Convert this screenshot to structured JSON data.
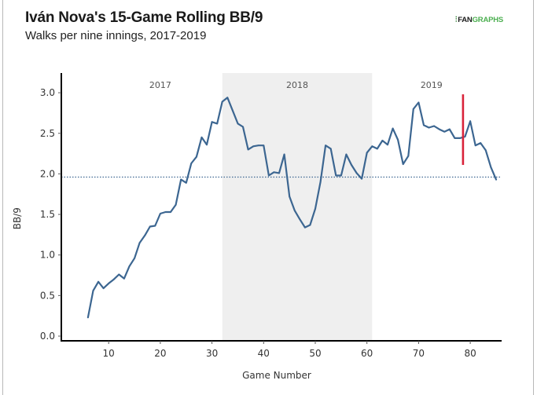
{
  "header": {
    "title": "Iván Nova's 15-Game Rolling BB/9",
    "subtitle": "Walks per nine innings, 2017-2019",
    "logo_text_dark": "FAN",
    "logo_text_green": "GRAPHS",
    "logo_icon": "fangraphs-logo-icon"
  },
  "colors": {
    "line": "#3c6691",
    "shade": "#efefef",
    "marker": "#d9233a",
    "reference": "#3c6691",
    "logo_green": "#4caf50"
  },
  "chart_data": {
    "type": "line",
    "title": "Iván Nova's 15-Game Rolling BB/9",
    "subtitle": "Walks per nine innings, 2017-2019",
    "xlabel": "Game Number",
    "ylabel": "BB/9",
    "xlim": [
      1,
      86
    ],
    "ylim": [
      0,
      3.2
    ],
    "xticks": [
      10,
      20,
      30,
      40,
      50,
      60,
      70,
      80
    ],
    "xtick_labels": [
      "10",
      "20",
      "30",
      "40",
      "50",
      "60",
      "70",
      "80"
    ],
    "yticks": [
      0,
      0.5,
      1.0,
      1.5,
      2.0,
      2.5,
      3.0
    ],
    "ytick_labels": [
      "0.0",
      "0.5",
      "1.0",
      "1.5",
      "2.0",
      "2.5",
      "3.0"
    ],
    "grid": false,
    "series": [
      {
        "name": "15-Game Rolling BB/9",
        "x": [
          6,
          7,
          8,
          9,
          10,
          11,
          12,
          13,
          14,
          15,
          16,
          17,
          18,
          19,
          20,
          21,
          22,
          23,
          24,
          25,
          26,
          27,
          28,
          29,
          30,
          31,
          32,
          33,
          34,
          35,
          36,
          37,
          38,
          39,
          40,
          41,
          42,
          43,
          44,
          45,
          46,
          47,
          48,
          49,
          50,
          51,
          52,
          53,
          54,
          55,
          56,
          57,
          58,
          59,
          60,
          61,
          62,
          63,
          64,
          65,
          66,
          67,
          68,
          69,
          70,
          71,
          72,
          73,
          74,
          75,
          76,
          77,
          78,
          79,
          80,
          81,
          82,
          83,
          84,
          85
        ],
        "values": [
          0.23,
          0.56,
          0.67,
          0.59,
          0.65,
          0.7,
          0.76,
          0.71,
          0.86,
          0.96,
          1.15,
          1.24,
          1.35,
          1.36,
          1.51,
          1.53,
          1.53,
          1.62,
          1.93,
          1.89,
          2.13,
          2.21,
          2.45,
          2.36,
          2.64,
          2.62,
          2.89,
          2.94,
          2.78,
          2.62,
          2.58,
          2.3,
          2.34,
          2.35,
          2.35,
          1.98,
          2.02,
          2.01,
          2.24,
          1.72,
          1.55,
          1.44,
          1.34,
          1.37,
          1.57,
          1.9,
          2.35,
          2.31,
          1.98,
          1.98,
          2.24,
          2.11,
          2.01,
          1.94,
          2.26,
          2.34,
          2.31,
          2.41,
          2.36,
          2.56,
          2.42,
          2.12,
          2.22,
          2.8,
          2.88,
          2.6,
          2.57,
          2.59,
          2.55,
          2.52,
          2.55,
          2.44,
          2.44,
          2.46,
          2.65,
          2.35,
          2.38,
          2.29,
          2.08,
          1.93
        ]
      }
    ],
    "shaded_regions": [
      {
        "label": "2018",
        "x_start": 32,
        "x_end": 61
      }
    ],
    "region_labels": [
      {
        "label": "2017",
        "x": 20
      },
      {
        "label": "2018",
        "x": 46.5
      },
      {
        "label": "2019",
        "x": 72.5
      }
    ],
    "reference_line": {
      "y": 1.96,
      "style": "dotted"
    },
    "marker_line": {
      "x": 78.6,
      "y_start": 2.11,
      "y_end": 2.98
    }
  }
}
